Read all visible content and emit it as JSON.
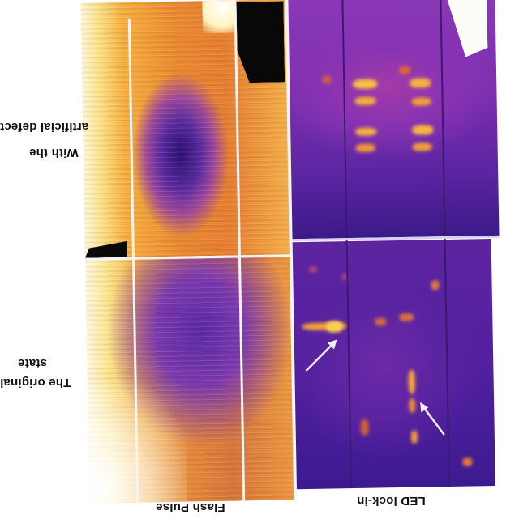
{
  "labels": {
    "row_top_line1": "With the",
    "row_top_line2": "artificial defect",
    "row_bottom_line1": "The original",
    "row_bottom_line2": "state",
    "col_left": "Flash Pulse",
    "col_right": "LED lock-in"
  },
  "colors": {
    "background": "#ffffff",
    "thermal_hot": "#fde96a",
    "thermal_mid": "#f29a20",
    "thermal_cool": "#7b2fb0",
    "thermal_cold": "#2a0f6e",
    "arrow": "#f0f0f0"
  },
  "arrows": [
    {
      "name": "defect-arrow-1",
      "direction": "up-right"
    },
    {
      "name": "defect-arrow-2",
      "direction": "up-left"
    }
  ]
}
